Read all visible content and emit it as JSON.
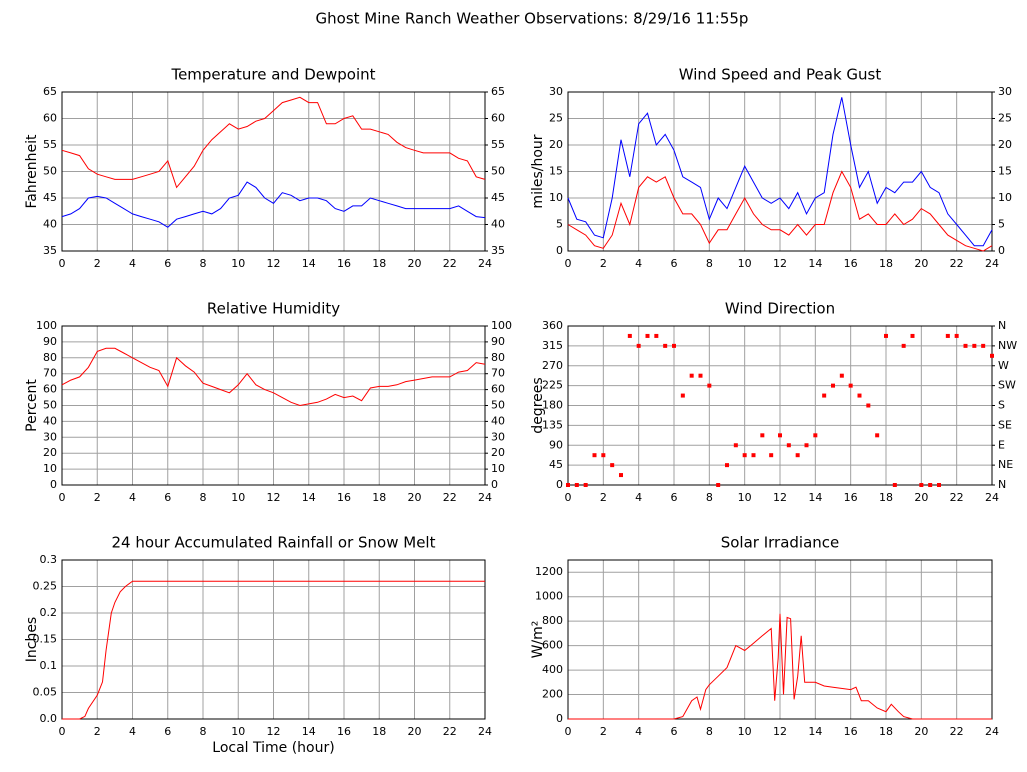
{
  "title": "Ghost Mine Ranch Weather Observations: 8/29/16 11:55p",
  "chart_data": [
    {
      "type": "line",
      "title": "Temperature and Dewpoint",
      "y_label": "Fahrenheit",
      "xlim": [
        0,
        24
      ],
      "xticks": [
        0,
        2,
        4,
        6,
        8,
        10,
        12,
        14,
        16,
        18,
        20,
        22,
        24
      ],
      "ylim": [
        35,
        65
      ],
      "yticks": [
        35,
        40,
        45,
        50,
        55,
        60,
        65
      ],
      "y2lim": [
        35,
        65
      ],
      "y2ticks": [
        35,
        40,
        45,
        50,
        55,
        60,
        65
      ],
      "grid": true,
      "x": [
        0,
        0.5,
        1,
        1.5,
        2,
        2.5,
        3,
        3.5,
        4,
        4.5,
        5,
        5.5,
        6,
        6.5,
        7,
        7.5,
        8,
        8.5,
        9,
        9.5,
        10,
        10.5,
        11,
        11.5,
        12,
        12.5,
        13,
        13.5,
        14,
        14.5,
        15,
        15.5,
        16,
        16.5,
        17,
        17.5,
        18,
        18.5,
        19,
        19.5,
        20,
        20.5,
        21,
        21.5,
        22,
        22.5,
        23,
        23.5,
        24
      ],
      "series": [
        {
          "color": "#ff0000",
          "values": [
            54,
            53.5,
            53,
            50.5,
            49.5,
            49,
            48.5,
            48.5,
            48.5,
            49,
            49.5,
            50,
            52,
            47,
            49,
            51,
            54,
            56,
            57.5,
            59,
            58,
            58.5,
            59.5,
            60,
            61.5,
            63,
            63.5,
            64,
            63,
            63,
            59,
            59,
            60,
            60.5,
            58,
            58,
            57.5,
            57,
            55.5,
            54.5,
            54,
            53.5,
            53.5,
            53.5,
            53.5,
            52.5,
            52,
            49,
            48.5
          ]
        },
        {
          "color": "#0000ff",
          "values": [
            41.5,
            42,
            43,
            45,
            45.3,
            45,
            44,
            43,
            42,
            41.5,
            41,
            40.5,
            39.5,
            41,
            41.5,
            42,
            42.5,
            42,
            43,
            45,
            45.5,
            48,
            47,
            45,
            44,
            46,
            45.5,
            44.5,
            45,
            45,
            44.5,
            43,
            42.5,
            43.5,
            43.5,
            45,
            44.5,
            44,
            43.5,
            43,
            43,
            43,
            43,
            43,
            43,
            43.5,
            42.5,
            41.5,
            41.3
          ]
        }
      ]
    },
    {
      "type": "line",
      "title": "Wind Speed and Peak Gust",
      "y_label": "miles/hour",
      "xlim": [
        0,
        24
      ],
      "xticks": [
        0,
        2,
        4,
        6,
        8,
        10,
        12,
        14,
        16,
        18,
        20,
        22,
        24
      ],
      "ylim": [
        0,
        30
      ],
      "yticks": [
        0,
        5,
        10,
        15,
        20,
        25,
        30
      ],
      "y2lim": [
        0,
        30
      ],
      "y2ticks": [
        0,
        5,
        10,
        15,
        20,
        25,
        30
      ],
      "grid": true,
      "x": [
        0,
        0.5,
        1,
        1.5,
        2,
        2.5,
        3,
        3.5,
        4,
        4.5,
        5,
        5.5,
        6,
        6.5,
        7,
        7.5,
        8,
        8.5,
        9,
        9.5,
        10,
        10.5,
        11,
        11.5,
        12,
        12.5,
        13,
        13.5,
        14,
        14.5,
        15,
        15.5,
        16,
        16.5,
        17,
        17.5,
        18,
        18.5,
        19,
        19.5,
        20,
        20.5,
        21,
        21.5,
        22,
        22.5,
        23,
        23.5,
        24
      ],
      "series": [
        {
          "color": "#0000ff",
          "values": [
            10,
            6,
            5.5,
            3,
            2.5,
            10,
            21,
            14,
            24,
            26,
            20,
            22,
            19,
            14,
            13,
            12,
            6,
            10,
            8,
            12,
            16,
            13,
            10,
            9,
            10,
            8,
            11,
            7,
            10,
            11,
            22,
            29,
            20,
            12,
            15,
            9,
            12,
            11,
            13,
            13,
            15,
            12,
            11,
            7,
            5,
            3,
            1,
            1,
            4
          ]
        },
        {
          "color": "#ff0000",
          "values": [
            5,
            4,
            3,
            1,
            0.5,
            3,
            9,
            5,
            12,
            14,
            13,
            14,
            10,
            7,
            7,
            5,
            1.5,
            4,
            4,
            7,
            10,
            7,
            5,
            4,
            4,
            3,
            5,
            3,
            5,
            5,
            11,
            15,
            12,
            6,
            7,
            5,
            5,
            7,
            5,
            6,
            8,
            7,
            5,
            3,
            2,
            1,
            0.5,
            0,
            1
          ]
        }
      ]
    },
    {
      "type": "line",
      "title": "Relative Humidity",
      "y_label": "Percent",
      "xlim": [
        0,
        24
      ],
      "xticks": [
        0,
        2,
        4,
        6,
        8,
        10,
        12,
        14,
        16,
        18,
        20,
        22,
        24
      ],
      "ylim": [
        0,
        100
      ],
      "yticks": [
        0,
        10,
        20,
        30,
        40,
        50,
        60,
        70,
        80,
        90,
        100
      ],
      "y2lim": [
        0,
        100
      ],
      "y2ticks": [
        0,
        10,
        20,
        30,
        40,
        50,
        60,
        70,
        80,
        90,
        100
      ],
      "grid": true,
      "x": [
        0,
        0.5,
        1,
        1.5,
        2,
        2.5,
        3,
        3.5,
        4,
        4.5,
        5,
        5.5,
        6,
        6.5,
        7,
        7.5,
        8,
        8.5,
        9,
        9.5,
        10,
        10.5,
        11,
        11.5,
        12,
        12.5,
        13,
        13.5,
        14,
        14.5,
        15,
        15.5,
        16,
        16.5,
        17,
        17.5,
        18,
        18.5,
        19,
        19.5,
        20,
        20.5,
        21,
        21.5,
        22,
        22.5,
        23,
        23.5,
        24
      ],
      "series": [
        {
          "color": "#ff0000",
          "values": [
            63,
            66,
            68,
            74,
            84,
            86,
            86,
            83,
            80,
            77,
            74,
            72,
            62,
            80,
            75,
            71,
            64,
            62,
            60,
            58,
            63,
            70,
            63,
            60,
            58,
            55,
            52,
            50,
            51,
            52,
            54,
            57,
            55,
            56,
            53,
            61,
            62,
            62,
            63,
            65,
            66,
            67,
            68,
            68,
            68,
            71,
            72,
            77,
            76
          ]
        }
      ]
    },
    {
      "type": "scatter",
      "title": "Wind Direction",
      "y_label": "degrees",
      "xlim": [
        0,
        24
      ],
      "xticks": [
        0,
        2,
        4,
        6,
        8,
        10,
        12,
        14,
        16,
        18,
        20,
        22,
        24
      ],
      "ylim": [
        0,
        360
      ],
      "yticks": [
        0,
        45,
        90,
        135,
        180,
        225,
        270,
        315,
        360
      ],
      "y2lim": [
        0,
        360
      ],
      "y2ticks": [
        {
          "value": 0,
          "label": "N"
        },
        {
          "value": 45,
          "label": "NE"
        },
        {
          "value": 90,
          "label": "E"
        },
        {
          "value": 135,
          "label": "SE"
        },
        {
          "value": 180,
          "label": "S"
        },
        {
          "value": 225,
          "label": "SW"
        },
        {
          "value": 270,
          "label": "W"
        },
        {
          "value": 315,
          "label": "NW"
        },
        {
          "value": 360,
          "label": "N"
        }
      ],
      "grid": true,
      "x": [
        0,
        0.5,
        1,
        1.5,
        2,
        2.5,
        3,
        3.5,
        4,
        4.5,
        5,
        5.5,
        6,
        6.5,
        7,
        7.5,
        8,
        8.5,
        9,
        9.5,
        10,
        10.5,
        11,
        11.5,
        12,
        12.5,
        13,
        13.5,
        14,
        14.5,
        15,
        15.5,
        16,
        16.5,
        17,
        17.5,
        18,
        18.5,
        19,
        19.5,
        20,
        20.5,
        21,
        21.5,
        22,
        22.5,
        23,
        23.5,
        24
      ],
      "series": [
        {
          "color": "#ff0000",
          "values": [
            0,
            0,
            0,
            67.5,
            67.5,
            45,
            22.5,
            337.5,
            315,
            337.5,
            337.5,
            315,
            315,
            202.5,
            247.5,
            247.5,
            225,
            0,
            45,
            90,
            67.5,
            67.5,
            112.5,
            67.5,
            112.5,
            90,
            67.5,
            90,
            112.5,
            202.5,
            225,
            247.5,
            225,
            202.5,
            180,
            112.5,
            337.5,
            0,
            315,
            337.5,
            0,
            0,
            0,
            337.5,
            337.5,
            315,
            315,
            315,
            292.5
          ]
        }
      ]
    },
    {
      "type": "line",
      "title": "24 hour Accumulated Rainfall or Snow Melt",
      "y_label": "Inches",
      "x_label": "Local Time (hour)",
      "xlim": [
        0,
        24
      ],
      "xticks": [
        0,
        2,
        4,
        6,
        8,
        10,
        12,
        14,
        16,
        18,
        20,
        22,
        24
      ],
      "ylim": [
        0,
        0.3
      ],
      "yticks": [
        {
          "value": 0,
          "label": "0.0"
        },
        0.05,
        0.1,
        0.15,
        0.2,
        0.25,
        0.3
      ],
      "grid": true,
      "x": [
        0,
        1,
        1.3,
        1.5,
        2,
        2.3,
        2.5,
        2.8,
        3,
        3.3,
        3.6,
        4,
        24
      ],
      "series": [
        {
          "color": "#ff0000",
          "values": [
            0,
            0,
            0.005,
            0.02,
            0.045,
            0.07,
            0.13,
            0.2,
            0.22,
            0.24,
            0.25,
            0.26,
            0.26
          ]
        }
      ]
    },
    {
      "type": "line",
      "title": "Solar Irradiance",
      "y_label": "W/m²",
      "xlim": [
        0,
        24
      ],
      "xticks": [
        0,
        2,
        4,
        6,
        8,
        10,
        12,
        14,
        16,
        18,
        20,
        22,
        24
      ],
      "ylim": [
        0,
        1300
      ],
      "yticks": [
        0,
        200,
        400,
        600,
        800,
        1000,
        1200
      ],
      "grid": true,
      "x": [
        0,
        6,
        6.5,
        7,
        7.3,
        7.5,
        7.8,
        8,
        8.5,
        9,
        9.5,
        10,
        10.5,
        11,
        11.5,
        11.7,
        11.9,
        12,
        12.2,
        12.4,
        12.6,
        12.8,
        13,
        13.2,
        13.4,
        14,
        14.5,
        15,
        16,
        16.3,
        16.6,
        17,
        17.5,
        18,
        18.3,
        18.7,
        19,
        19.5,
        24
      ],
      "series": [
        {
          "color": "#ff0000",
          "values": [
            0,
            0,
            20,
            150,
            180,
            80,
            240,
            280,
            350,
            420,
            600,
            560,
            620,
            680,
            740,
            150,
            500,
            860,
            200,
            830,
            820,
            160,
            350,
            680,
            300,
            300,
            270,
            260,
            240,
            260,
            150,
            150,
            90,
            60,
            120,
            60,
            20,
            0,
            0
          ]
        }
      ]
    }
  ]
}
